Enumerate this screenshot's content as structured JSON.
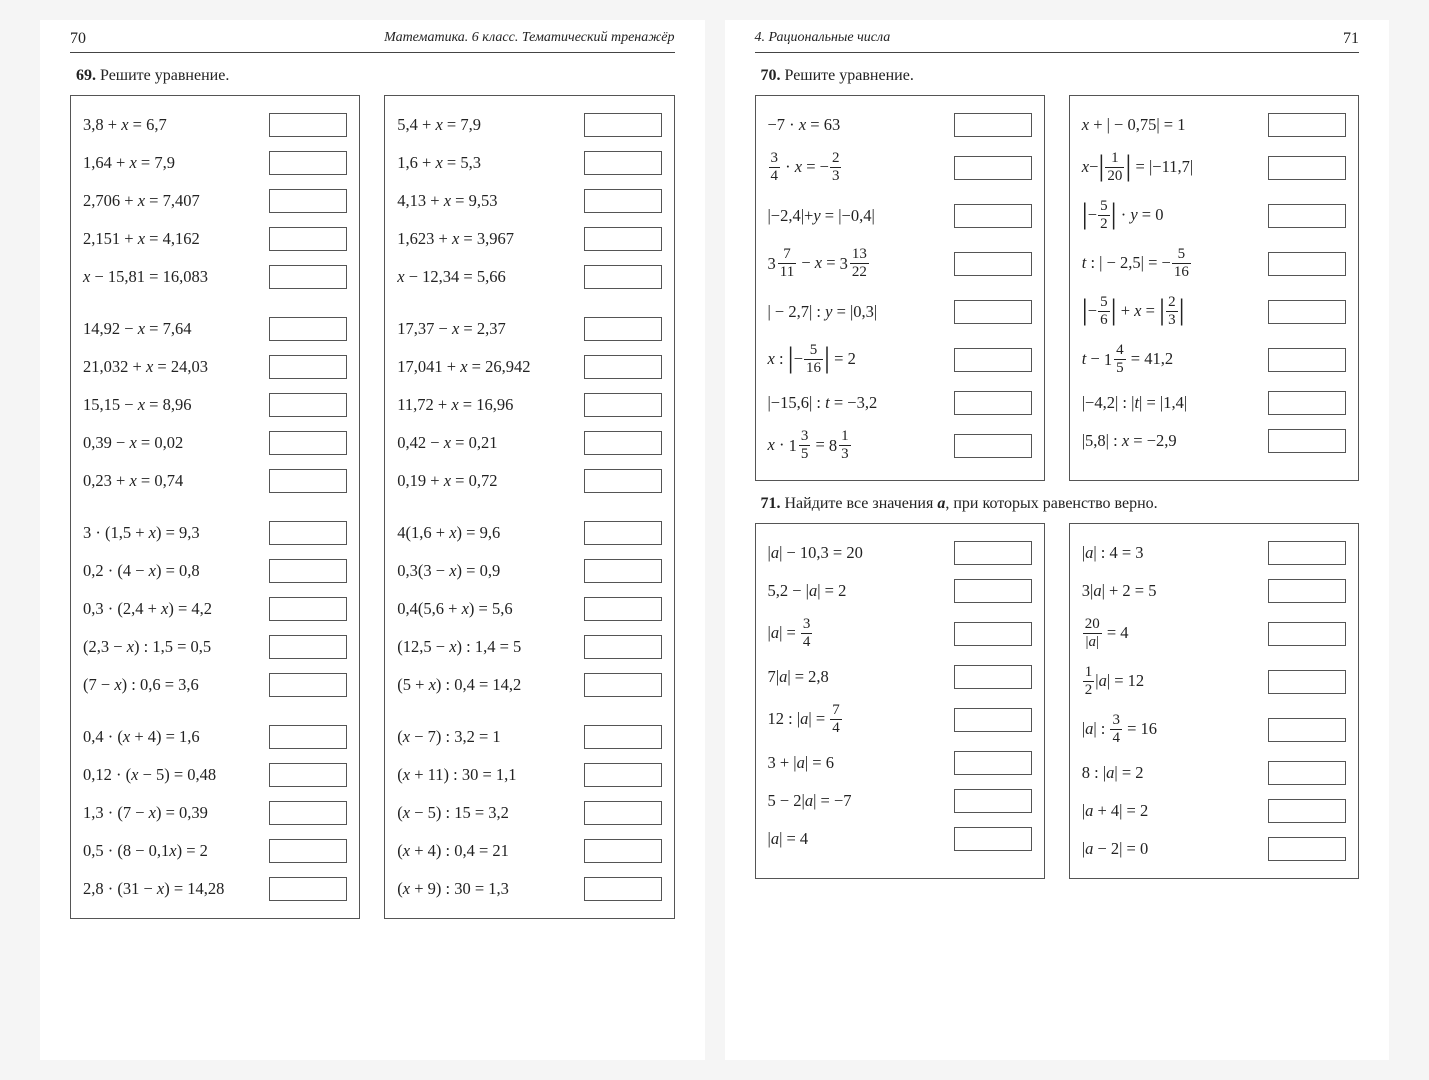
{
  "leftPage": {
    "pageNum": "70",
    "bookTitle": "Математика. 6 класс. Тематический тренажёр",
    "task69": {
      "num": "69.",
      "text": "Решите уравнение.",
      "col1": [
        {
          "html": "3,8 + <i>x</i> = 6,7"
        },
        {
          "html": "1,64 + <i>x</i> = 7,9"
        },
        {
          "html": "2,706 + <i>x</i> = 7,407"
        },
        {
          "html": "2,151 + <i>x</i> = 4,162"
        },
        {
          "html": "<i>x</i> − 15,81 = 16,083"
        },
        {
          "gap": true
        },
        {
          "html": "14,92 − <i>x</i> = 7,64"
        },
        {
          "html": "21,032 + <i>x</i> = 24,03"
        },
        {
          "html": "15,15 − <i>x</i> = 8,96"
        },
        {
          "html": "0,39 − <i>x</i> = 0,02"
        },
        {
          "html": "0,23 + <i>x</i> = 0,74"
        },
        {
          "gap": true
        },
        {
          "html": "3 · (1,5 + <i>x</i>) = 9,3"
        },
        {
          "html": "0,2 · (4 − <i>x</i>) = 0,8"
        },
        {
          "html": "0,3 · (2,4 + <i>x</i>) = 4,2"
        },
        {
          "html": "(2,3 − <i>x</i>) : 1,5 = 0,5"
        },
        {
          "html": "(7 − <i>x</i>) : 0,6 = 3,6"
        },
        {
          "gap": true
        },
        {
          "html": "0,4 · (<i>x</i> + 4) = 1,6"
        },
        {
          "html": "0,12 · (<i>x</i> − 5) = 0,48"
        },
        {
          "html": "1,3 · (7 − <i>x</i>) = 0,39"
        },
        {
          "html": "0,5 · (8 − 0,1<i>x</i>) = 2"
        },
        {
          "html": "2,8 · (31 − <i>x</i>) = 14,28"
        }
      ],
      "col2": [
        {
          "html": "5,4 + <i>x</i> = 7,9"
        },
        {
          "html": "1,6 + <i>x</i> = 5,3"
        },
        {
          "html": "4,13 + <i>x</i> = 9,53"
        },
        {
          "html": "1,623 + <i>x</i> = 3,967"
        },
        {
          "html": "<i>x</i> − 12,34 = 5,66"
        },
        {
          "gap": true
        },
        {
          "html": "17,37 − <i>x</i> = 2,37"
        },
        {
          "html": "17,041 + <i>x</i> = 26,942"
        },
        {
          "html": "11,72 + <i>x</i> = 16,96"
        },
        {
          "html": "0,42 − <i>x</i> = 0,21"
        },
        {
          "html": "0,19 + <i>x</i> = 0,72"
        },
        {
          "gap": true
        },
        {
          "html": "4(1,6 + <i>x</i>) = 9,6"
        },
        {
          "html": "0,3(3 − <i>x</i>) = 0,9"
        },
        {
          "html": "0,4(5,6 + <i>x</i>) = 5,6"
        },
        {
          "html": "(12,5 − <i>x</i>) : 1,4 = 5"
        },
        {
          "html": "(5 + <i>x</i>) : 0,4 = 14,2"
        },
        {
          "gap": true
        },
        {
          "html": "(<i>x</i> − 7) : 3,2 = 1"
        },
        {
          "html": "(<i>x</i> + 11) : 30 = 1,1"
        },
        {
          "html": "(<i>x</i> − 5) : 15 = 3,2"
        },
        {
          "html": "(<i>x</i> + 4) : 0,4 = 21"
        },
        {
          "html": "(<i>x</i> + 9) : 30 = 1,3"
        }
      ]
    }
  },
  "rightPage": {
    "pageNum": "71",
    "sectionTitle": "4. Рациональные числа",
    "task70": {
      "num": "70.",
      "text": "Решите уравнение.",
      "col1": [
        {
          "html": "−7 · <i>x</i> = 63"
        },
        {
          "html": "<span class='frac'><span class='n'>3</span><span class='d'>4</span></span> · <i>x</i> = −<span class='frac'><span class='n'>2</span><span class='d'>3</span></span>",
          "tall": true
        },
        {
          "html": "|−2,4|+<i>y</i> = |−0,4|",
          "tall": true
        },
        {
          "html": "<span class='mfrac'><span class='whole'>3</span><span class='frac'><span class='n'>7</span><span class='d'>11</span></span></span> − <i>x</i> = <span class='mfrac'><span class='whole'>3</span><span class='frac'><span class='n'>13</span><span class='d'>22</span></span></span>",
          "tall": true
        },
        {
          "html": "| − 2,7| : <i>y</i> = |0,3|",
          "tall": true
        },
        {
          "html": "<i>x</i> : <span class='tallbar'>|</span>−<span class='frac'><span class='n'>5</span><span class='d'>16</span></span><span class='tallbar'>|</span> = 2",
          "tall": true
        },
        {
          "html": "|−15,6| : <i>t</i> = −3,2"
        },
        {
          "html": "<i>x</i> · <span class='mfrac'><span class='whole'>1</span><span class='frac'><span class='n'>3</span><span class='d'>5</span></span></span> = <span class='mfrac'><span class='whole'>8</span><span class='frac'><span class='n'>1</span><span class='d'>3</span></span></span>",
          "tall": true
        }
      ],
      "col2": [
        {
          "html": "<i>x</i> + | − 0,75| = 1"
        },
        {
          "html": "<i>x</i>−<span class='tallbar'>|</span><span class='frac'><span class='n'>1</span><span class='d'>20</span></span><span class='tallbar'>|</span> = |−11,7|",
          "tall": true
        },
        {
          "html": "<span class='tallbar'>|</span>−<span class='frac'><span class='n'>5</span><span class='d'>2</span></span><span class='tallbar'>|</span> · <i>y</i> = 0",
          "tall": true
        },
        {
          "html": "<i>t</i> : | − 2,5| = −<span class='frac'><span class='n'>5</span><span class='d'>16</span></span>",
          "tall": true
        },
        {
          "html": "<span class='tallbar'>|</span>−<span class='frac'><span class='n'>5</span><span class='d'>6</span></span><span class='tallbar'>|</span> + <i>x</i> = <span class='tallbar'>|</span><span class='frac'><span class='n'>2</span><span class='d'>3</span></span><span class='tallbar'>|</span>",
          "tall": true
        },
        {
          "html": "<i>t</i> − <span class='mfrac'><span class='whole'>1</span><span class='frac'><span class='n'>4</span><span class='d'>5</span></span></span> = 41,2",
          "tall": true
        },
        {
          "html": "|−4,2| : |<i>t</i>| = |1,4|"
        },
        {
          "html": "|5,8| : <i>x</i> = −2,9"
        }
      ]
    },
    "task71": {
      "num": "71.",
      "text": "Найдите все значения a, при которых равенство верно.",
      "textHtml": "Найдите все значения <b><i>a</i></b>, при которых равенство верно.",
      "col1": [
        {
          "html": "|<i>a</i>| − 10,3 = 20"
        },
        {
          "html": "5,2 − |<i>a</i>| = 2"
        },
        {
          "html": "|<i>a</i>| = <span class='frac'><span class='n'>3</span><span class='d'>4</span></span>",
          "tall": true
        },
        {
          "html": "7|<i>a</i>| = 2,8"
        },
        {
          "html": "12 : |<i>a</i>| = <span class='frac'><span class='n'>7</span><span class='d'>4</span></span>",
          "tall": true
        },
        {
          "html": "3 + |<i>a</i>| = 6"
        },
        {
          "html": "5 − 2|<i>a</i>| = −7"
        },
        {
          "html": "|<i>a</i>| = 4"
        }
      ],
      "col2": [
        {
          "html": "|<i>a</i>| : 4 = 3"
        },
        {
          "html": "3|<i>a</i>| + 2 = 5"
        },
        {
          "html": "<span class='frac'><span class='n'>20</span><span class='d'>|<i>a</i>|</span></span> = 4",
          "tall": true
        },
        {
          "html": "<span class='frac'><span class='n'>1</span><span class='d'>2</span></span>|<i>a</i>| = 12",
          "tall": true
        },
        {
          "html": "|<i>a</i>| : <span class='frac'><span class='n'>3</span><span class='d'>4</span></span> = 16",
          "tall": true
        },
        {
          "html": "8 : |<i>a</i>| = 2"
        },
        {
          "html": "|<i>a</i> + 4| = 2"
        },
        {
          "html": "|<i>a</i> − 2| = 0"
        }
      ]
    }
  },
  "style": {
    "border_color": "#555",
    "text_color": "#222",
    "background": "#ffffff",
    "answer_box_w": 78,
    "answer_box_h": 24,
    "base_font_size": 16.5
  }
}
